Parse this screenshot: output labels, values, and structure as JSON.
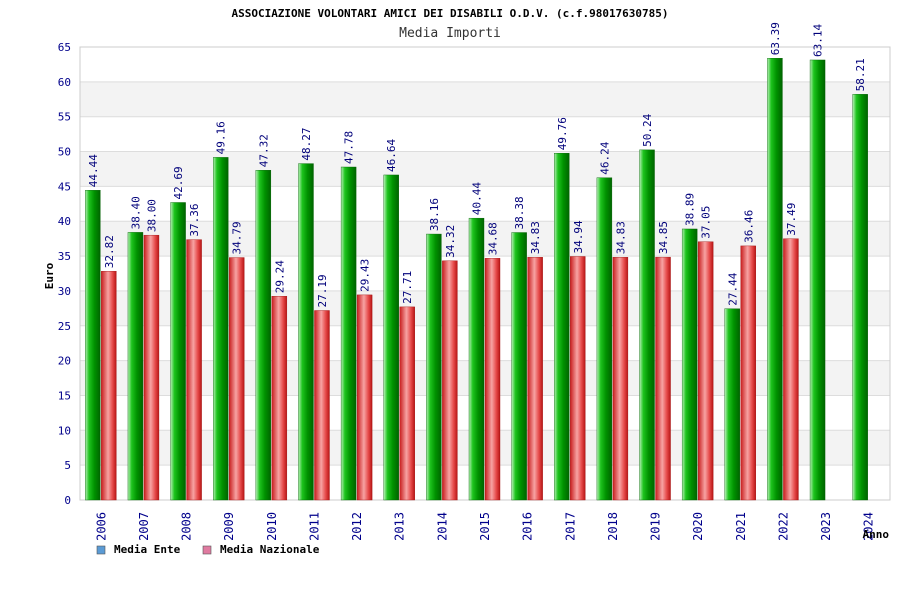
{
  "chart_data": {
    "type": "bar",
    "title": "ASSOCIAZIONE VOLONTARI AMICI DEI DISABILI O.D.V. (c.f.98017630785)",
    "subtitle": "Media Importi",
    "xlabel": "Anno",
    "ylabel": "Euro",
    "ylim": [
      0,
      65
    ],
    "yticks": [
      0,
      5,
      10,
      15,
      20,
      25,
      30,
      35,
      40,
      45,
      50,
      55,
      60,
      65
    ],
    "grid": true,
    "legend_position": "bottom-left",
    "categories": [
      "2006",
      "2007",
      "2008",
      "2009",
      "2010",
      "2011",
      "2012",
      "2013",
      "2014",
      "2015",
      "2016",
      "2017",
      "2018",
      "2019",
      "2020",
      "2021",
      "2022",
      "2023",
      "2024"
    ],
    "series": [
      {
        "name": "Media Ente",
        "legend_color": "#5b9bd5",
        "bar_color": "#0a9e0a",
        "values": [
          44.44,
          38.4,
          42.69,
          49.16,
          47.32,
          48.27,
          47.78,
          46.64,
          38.16,
          40.44,
          38.38,
          49.76,
          46.24,
          50.24,
          38.89,
          27.44,
          63.39,
          63.14,
          58.21
        ],
        "labels": [
          "44.44",
          "38.40",
          "42.69",
          "49.16",
          "47.32",
          "48.27",
          "47.78",
          "46.64",
          "38.16",
          "40.44",
          "38.38",
          "49.76",
          "46.24",
          "50.24",
          "38.89",
          "27.44",
          "63.39",
          "63.14",
          "58.21"
        ]
      },
      {
        "name": "Media Nazionale",
        "legend_color": "#e07aa0",
        "bar_color": "#e03030",
        "values": [
          32.82,
          38.0,
          37.36,
          34.79,
          29.24,
          27.19,
          29.43,
          27.71,
          34.32,
          34.68,
          34.83,
          34.94,
          34.83,
          34.85,
          37.05,
          36.46,
          37.49,
          null,
          null
        ],
        "labels": [
          "32.82",
          "38.00",
          "37.36",
          "34.79",
          "29.24",
          "27.19",
          "29.43",
          "27.71",
          "34.32",
          "34.68",
          "34.83",
          "34.94",
          "34.83",
          "34.85",
          "37.05",
          "36.46",
          "37.49",
          "",
          ""
        ]
      }
    ]
  },
  "colors": {
    "title_text": "#000000",
    "axis_text": "#00008b",
    "label_text": "#00007a",
    "grid_band": "#f3f3f3",
    "grid_line": "#dddddd"
  }
}
